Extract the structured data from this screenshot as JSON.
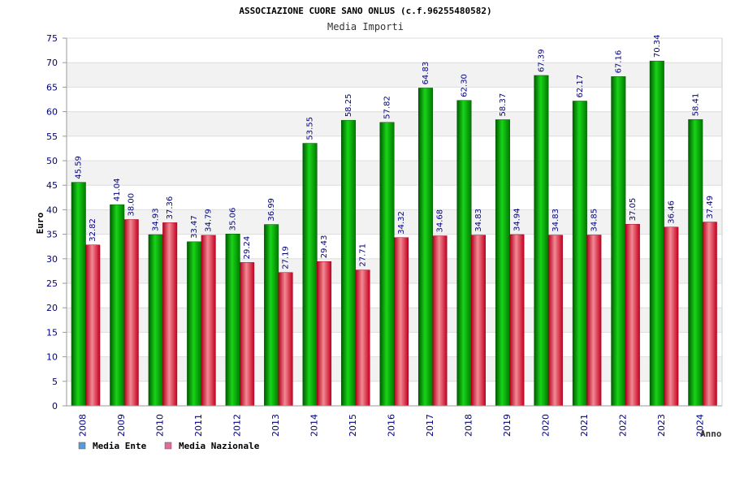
{
  "chart_data": {
    "type": "bar",
    "title": "ASSOCIAZIONE CUORE SANO ONLUS (c.f.96255480582)",
    "subtitle": "Media Importi",
    "xlabel": "Anno",
    "ylabel": "Euro",
    "ylim": [
      0,
      75
    ],
    "ytick_step": 5,
    "grid": true,
    "legend_position": "bottom-left",
    "categories": [
      "2008",
      "2009",
      "2010",
      "2011",
      "2012",
      "2013",
      "2014",
      "2015",
      "2016",
      "2017",
      "2018",
      "2019",
      "2020",
      "2021",
      "2022",
      "2023",
      "2024"
    ],
    "series": [
      {
        "name": "Media Ente",
        "legend_color": "#5b9bd5",
        "bar_color": "#0a9a0a",
        "values": [
          45.59,
          41.04,
          34.93,
          33.47,
          35.06,
          36.99,
          53.55,
          58.25,
          57.82,
          64.83,
          62.3,
          58.37,
          67.39,
          62.17,
          67.16,
          70.34,
          58.41
        ],
        "value_labels": [
          "45.59",
          "41.04",
          "34.93",
          "33.47",
          "35.06",
          "36.99",
          "53.55",
          "58.25",
          "57.82",
          "64.83",
          "62.30",
          "58.37",
          "67.39",
          "62.17",
          "67.16",
          "70.34",
          "58.41"
        ]
      },
      {
        "name": "Media Nazionale",
        "legend_color": "#e06a9a",
        "bar_color": "#e2233a",
        "values": [
          32.82,
          38.0,
          37.36,
          34.79,
          29.24,
          27.19,
          29.43,
          27.71,
          34.32,
          34.68,
          34.83,
          34.94,
          34.83,
          34.85,
          37.05,
          36.46,
          37.49
        ],
        "value_labels": [
          "32.82",
          "38.00",
          "37.36",
          "34.79",
          "29.24",
          "27.19",
          "29.43",
          "27.71",
          "34.32",
          "34.68",
          "34.83",
          "34.94",
          "34.83",
          "34.85",
          "37.05",
          "36.46",
          "37.49"
        ]
      }
    ]
  },
  "colors": {
    "axis_text": "#000080",
    "value_label": "#000080",
    "band": "#f2f2f2",
    "grid": "#dddddd"
  }
}
